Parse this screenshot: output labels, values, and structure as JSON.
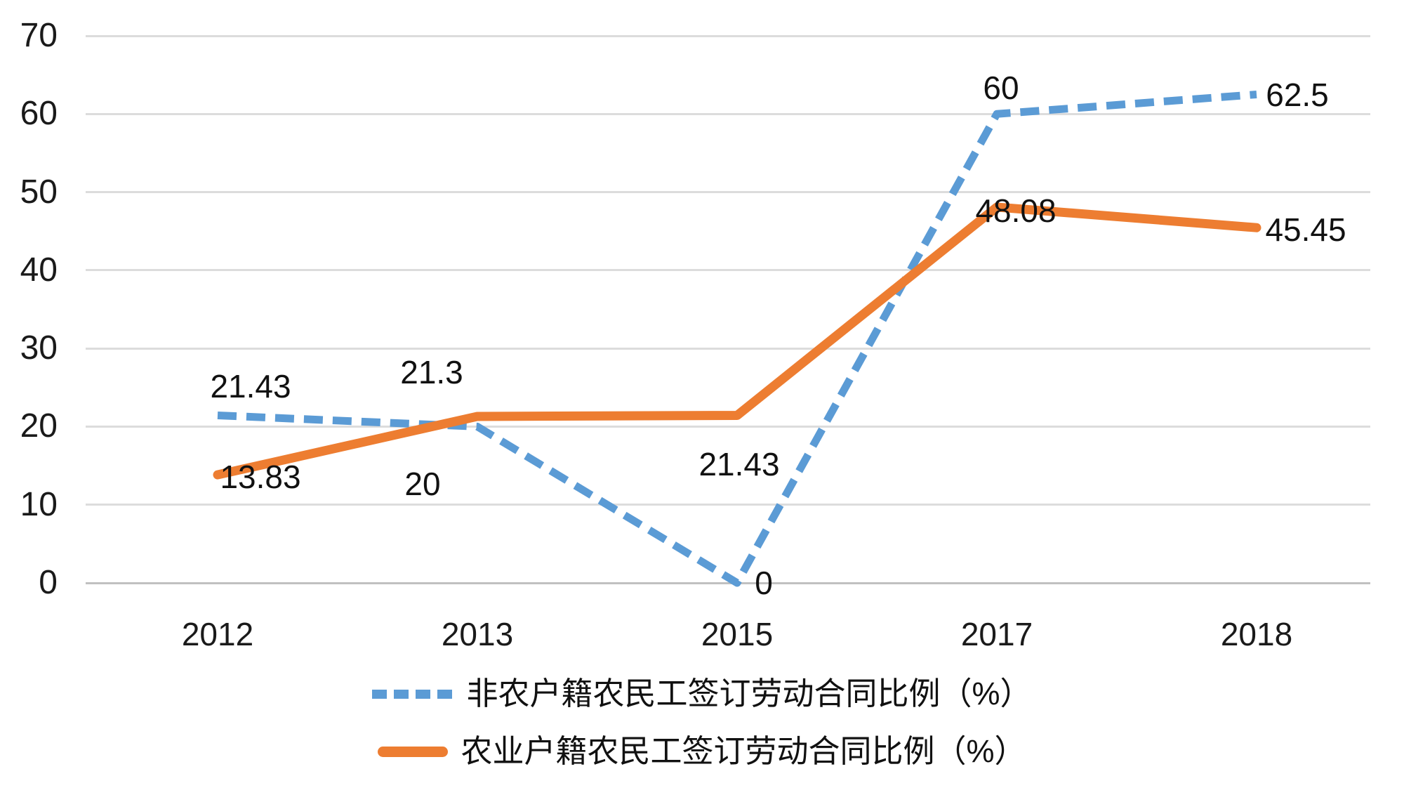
{
  "chart_data": {
    "type": "line",
    "categories": [
      "2012",
      "2013",
      "2015",
      "2017",
      "2018"
    ],
    "series": [
      {
        "name": "非农户籍农民工签订劳动合同比例（%）",
        "values": [
          21.43,
          20,
          0,
          60,
          62.5
        ],
        "data_labels": [
          "21.43",
          "20",
          "0",
          "60",
          "62.5"
        ],
        "color": "#5B9BD5",
        "line_style": "dashed"
      },
      {
        "name": "农业户籍农民工签订劳动合同比例（%）",
        "values": [
          13.83,
          21.3,
          21.43,
          48.08,
          45.45
        ],
        "data_labels": [
          "13.83",
          "21.3",
          "21.43",
          "48.08",
          "45.45"
        ],
        "color": "#ED7D31",
        "line_style": "solid"
      }
    ],
    "title": "",
    "xlabel": "",
    "ylabel": "",
    "ylim": [
      0,
      70
    ],
    "ytick_step": 10,
    "yticks": [
      "0",
      "10",
      "20",
      "30",
      "40",
      "50",
      "60",
      "70"
    ],
    "grid": "horizontal",
    "legend_position": "bottom"
  },
  "colors": {
    "background": "#FFFFFF",
    "gridline": "#DCDCDC",
    "axis_line": "#C0C0C0",
    "text": "#1A1A1A",
    "series_blue": "#5B9BD5",
    "series_orange": "#ED7D31"
  }
}
